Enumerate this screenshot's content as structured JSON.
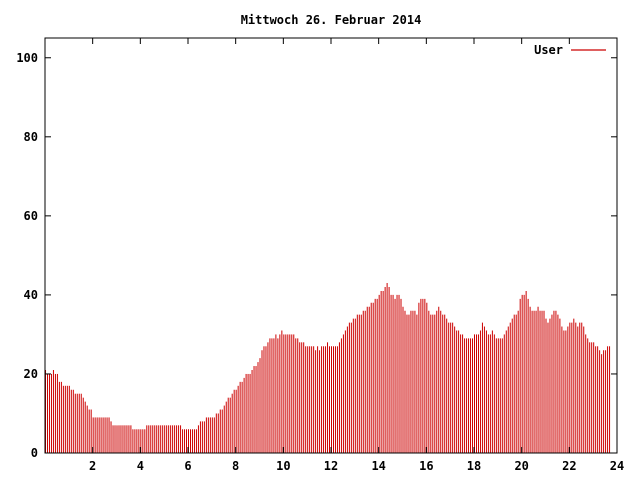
{
  "chart_data": {
    "type": "bar",
    "title": "Mittwoch 26. Februar 2014",
    "xlabel": "",
    "ylabel": "",
    "xlim": [
      0,
      24
    ],
    "ylim": [
      0,
      105
    ],
    "xticks": [
      2,
      4,
      6,
      8,
      10,
      12,
      14,
      16,
      18,
      20,
      22,
      24
    ],
    "yticks": [
      0,
      20,
      40,
      60,
      80,
      100
    ],
    "grid": false,
    "legend_position": "top-right",
    "series": [
      {
        "name": "User",
        "color": "#cc0000",
        "interval_minutes": 5,
        "values": [
          21,
          20,
          20,
          20,
          21,
          20,
          20,
          18,
          18,
          17,
          17,
          17,
          17,
          16,
          16,
          15,
          15,
          15,
          15,
          14,
          13,
          12,
          11,
          11,
          9,
          9,
          9,
          9,
          9,
          9,
          9,
          9,
          9,
          8,
          7,
          7,
          7,
          7,
          7,
          7,
          7,
          7,
          7,
          7,
          6,
          6,
          6,
          6,
          6,
          6,
          6,
          7,
          7,
          7,
          7,
          7,
          7,
          7,
          7,
          7,
          7,
          7,
          7,
          7,
          7,
          7,
          7,
          7,
          7,
          6,
          6,
          6,
          6,
          6,
          6,
          6,
          6,
          7,
          8,
          8,
          8,
          9,
          9,
          9,
          9,
          9,
          10,
          10,
          11,
          11,
          12,
          13,
          14,
          14,
          15,
          16,
          16,
          17,
          18,
          18,
          19,
          20,
          20,
          20,
          21,
          22,
          22,
          23,
          24,
          26,
          27,
          27,
          28,
          29,
          29,
          29,
          30,
          29,
          30,
          31,
          30,
          30,
          30,
          30,
          30,
          30,
          29,
          29,
          28,
          28,
          28,
          27,
          27,
          27,
          27,
          27,
          26,
          27,
          26,
          27,
          27,
          27,
          28,
          27,
          27,
          27,
          27,
          27,
          28,
          29,
          30,
          31,
          32,
          33,
          33,
          34,
          34,
          35,
          35,
          35,
          36,
          36,
          37,
          37,
          38,
          38,
          39,
          39,
          40,
          41,
          41,
          42,
          43,
          42,
          40,
          40,
          39,
          40,
          40,
          39,
          37,
          36,
          35,
          35,
          36,
          36,
          36,
          35,
          38,
          39,
          39,
          39,
          38,
          36,
          35,
          35,
          35,
          36,
          37,
          36,
          35,
          35,
          34,
          33,
          33,
          33,
          32,
          31,
          31,
          30,
          30,
          29,
          29,
          29,
          29,
          29,
          30,
          30,
          30,
          31,
          33,
          32,
          31,
          30,
          30,
          31,
          30,
          29,
          29,
          29,
          29,
          30,
          31,
          32,
          33,
          34,
          35,
          35,
          36,
          39,
          40,
          40,
          41,
          39,
          37,
          36,
          36,
          36,
          37,
          36,
          36,
          36,
          34,
          33,
          34,
          35,
          36,
          36,
          35,
          34,
          32,
          31,
          31,
          32,
          33,
          33,
          34,
          33,
          32,
          33,
          33,
          32,
          30,
          29,
          28,
          28,
          28,
          27,
          27,
          26,
          25,
          26,
          26,
          27,
          27
        ]
      }
    ]
  }
}
